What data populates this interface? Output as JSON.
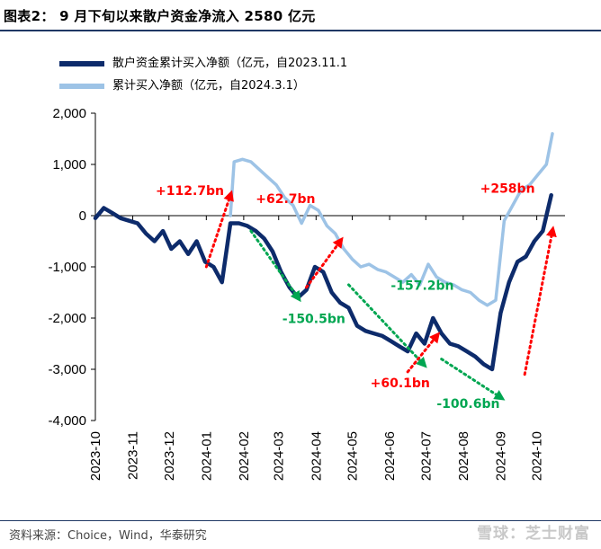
{
  "figure": {
    "title": "图表2：  9 月下旬以来散户资金净流入 2580 亿元",
    "source": "资料来源：Choice，Wind，华泰研究",
    "watermark": "雪球：芝士财富"
  },
  "chart_data": {
    "type": "line",
    "title": "",
    "xlabel": "",
    "ylabel": "",
    "ylim": [
      -4000,
      2000
    ],
    "yticks": [
      -4000,
      -3000,
      -2000,
      -1000,
      0,
      1000,
      2000
    ],
    "ytick_labels": [
      "-4,000",
      "-3,000",
      "-2,000",
      "-1,000",
      "0",
      "1,000",
      "2,000"
    ],
    "xticks": [
      "2023-10",
      "2023-11",
      "2023-12",
      "2024-01",
      "2024-02",
      "2024-03",
      "2024-04",
      "2024-05",
      "2024-06",
      "2024-07",
      "2024-08",
      "2024-09",
      "2024-10"
    ],
    "grid": false,
    "legend_position": "top-left",
    "series": [
      {
        "name": "散户资金累计买入净额（亿元，自2023.11.1",
        "color": "#0d2b6b",
        "points": [
          [
            "2023-10-01",
            -50
          ],
          [
            "2023-10-08",
            150
          ],
          [
            "2023-10-15",
            50
          ],
          [
            "2023-10-22",
            -50
          ],
          [
            "2023-10-29",
            -100
          ],
          [
            "2023-11-05",
            -150
          ],
          [
            "2023-11-12",
            -350
          ],
          [
            "2023-11-19",
            -500
          ],
          [
            "2023-11-26",
            -300
          ],
          [
            "2023-12-03",
            -650
          ],
          [
            "2023-12-10",
            -500
          ],
          [
            "2023-12-17",
            -750
          ],
          [
            "2023-12-24",
            -500
          ],
          [
            "2023-12-31",
            -900
          ],
          [
            "2024-01-07",
            -1000
          ],
          [
            "2024-01-14",
            -1300
          ],
          [
            "2024-01-21",
            -150
          ],
          [
            "2024-01-28",
            -150
          ],
          [
            "2024-02-04",
            -200
          ],
          [
            "2024-02-11",
            -300
          ],
          [
            "2024-02-18",
            -450
          ],
          [
            "2024-02-25",
            -700
          ],
          [
            "2024-03-03",
            -1100
          ],
          [
            "2024-03-10",
            -1400
          ],
          [
            "2024-03-17",
            -1600
          ],
          [
            "2024-03-24",
            -1450
          ],
          [
            "2024-03-31",
            -1000
          ],
          [
            "2024-04-07",
            -1100
          ],
          [
            "2024-04-14",
            -1500
          ],
          [
            "2024-04-21",
            -1700
          ],
          [
            "2024-04-28",
            -1800
          ],
          [
            "2024-05-05",
            -2150
          ],
          [
            "2024-05-12",
            -2250
          ],
          [
            "2024-05-19",
            -2300
          ],
          [
            "2024-05-26",
            -2350
          ],
          [
            "2024-06-02",
            -2450
          ],
          [
            "2024-06-09",
            -2550
          ],
          [
            "2024-06-16",
            -2650
          ],
          [
            "2024-06-23",
            -2300
          ],
          [
            "2024-06-30",
            -2500
          ],
          [
            "2024-07-07",
            -2000
          ],
          [
            "2024-07-14",
            -2300
          ],
          [
            "2024-07-21",
            -2500
          ],
          [
            "2024-07-28",
            -2550
          ],
          [
            "2024-08-04",
            -2650
          ],
          [
            "2024-08-11",
            -2750
          ],
          [
            "2024-08-18",
            -2900
          ],
          [
            "2024-08-25",
            -3000
          ],
          [
            "2024-09-01",
            -1900
          ],
          [
            "2024-09-08",
            -1300
          ],
          [
            "2024-09-15",
            -900
          ],
          [
            "2024-09-22",
            -800
          ],
          [
            "2024-09-29",
            -500
          ],
          [
            "2024-10-06",
            -300
          ],
          [
            "2024-10-13",
            400
          ]
        ]
      },
      {
        "name": "累计买入净额（亿元，自2024.3.1）",
        "color": "#9dc3e6",
        "points": [
          [
            "2024-01-21",
            0
          ],
          [
            "2024-01-24",
            1050
          ],
          [
            "2024-01-31",
            1100
          ],
          [
            "2024-02-07",
            1050
          ],
          [
            "2024-02-14",
            900
          ],
          [
            "2024-02-21",
            750
          ],
          [
            "2024-02-28",
            600
          ],
          [
            "2024-03-06",
            350
          ],
          [
            "2024-03-13",
            200
          ],
          [
            "2024-03-20",
            -150
          ],
          [
            "2024-03-27",
            200
          ],
          [
            "2024-04-03",
            100
          ],
          [
            "2024-04-10",
            -200
          ],
          [
            "2024-04-17",
            -350
          ],
          [
            "2024-04-24",
            -650
          ],
          [
            "2024-05-01",
            -850
          ],
          [
            "2024-05-08",
            -1000
          ],
          [
            "2024-05-15",
            -950
          ],
          [
            "2024-05-22",
            -1050
          ],
          [
            "2024-05-29",
            -1100
          ],
          [
            "2024-06-05",
            -1200
          ],
          [
            "2024-06-12",
            -1300
          ],
          [
            "2024-06-19",
            -1150
          ],
          [
            "2024-06-26",
            -1350
          ],
          [
            "2024-07-03",
            -950
          ],
          [
            "2024-07-10",
            -1200
          ],
          [
            "2024-07-17",
            -1300
          ],
          [
            "2024-07-24",
            -1350
          ],
          [
            "2024-07-31",
            -1450
          ],
          [
            "2024-08-07",
            -1500
          ],
          [
            "2024-08-14",
            -1650
          ],
          [
            "2024-08-21",
            -1750
          ],
          [
            "2024-08-28",
            -1650
          ],
          [
            "2024-09-04",
            -100
          ],
          [
            "2024-09-11",
            200
          ],
          [
            "2024-09-18",
            500
          ],
          [
            "2024-09-25",
            600
          ],
          [
            "2024-10-02",
            800
          ],
          [
            "2024-10-09",
            1000
          ],
          [
            "2024-10-14",
            1600
          ]
        ]
      }
    ],
    "annotations": [
      {
        "text": "+112.7bn",
        "color": "#ff0000",
        "from": [
          "2024-01-01",
          -1000
        ],
        "to": [
          "2024-01-21",
          400
        ],
        "label_at": [
          "2023-11-20",
          400
        ]
      },
      {
        "text": "+62.7bn",
        "color": "#ff0000",
        "from": [
          "2024-03-24",
          -1400
        ],
        "to": [
          "2024-04-21",
          -500
        ],
        "label_at": [
          "2024-02-11",
          250
        ]
      },
      {
        "text": "-150.5bn",
        "color": "#00a651",
        "from": [
          "2024-02-07",
          -300
        ],
        "to": [
          "2024-03-17",
          -1600
        ],
        "label_at": [
          "2024-03-04",
          -2100
        ]
      },
      {
        "text": "-157.2bn",
        "color": "#00a651",
        "from": [
          "2024-04-28",
          -1350
        ],
        "to": [
          "2024-06-29",
          -2900
        ],
        "label_at": [
          "2024-06-02",
          -1450
        ]
      },
      {
        "text": "+60.1bn",
        "color": "#ff0000",
        "from": [
          "2024-06-16",
          -3050
        ],
        "to": [
          "2024-07-10",
          -2350
        ],
        "label_at": [
          "2024-05-16",
          -3350
        ]
      },
      {
        "text": "-100.6bn",
        "color": "#00a651",
        "from": [
          "2024-07-14",
          -2800
        ],
        "to": [
          "2024-09-01",
          -3550
        ],
        "label_at": [
          "2024-07-10",
          -3750
        ]
      },
      {
        "text": "+258bn",
        "color": "#ff0000",
        "from": [
          "2024-09-21",
          -3100
        ],
        "to": [
          "2024-10-14",
          -300
        ],
        "label_at": [
          "2024-08-15",
          450
        ]
      }
    ]
  }
}
